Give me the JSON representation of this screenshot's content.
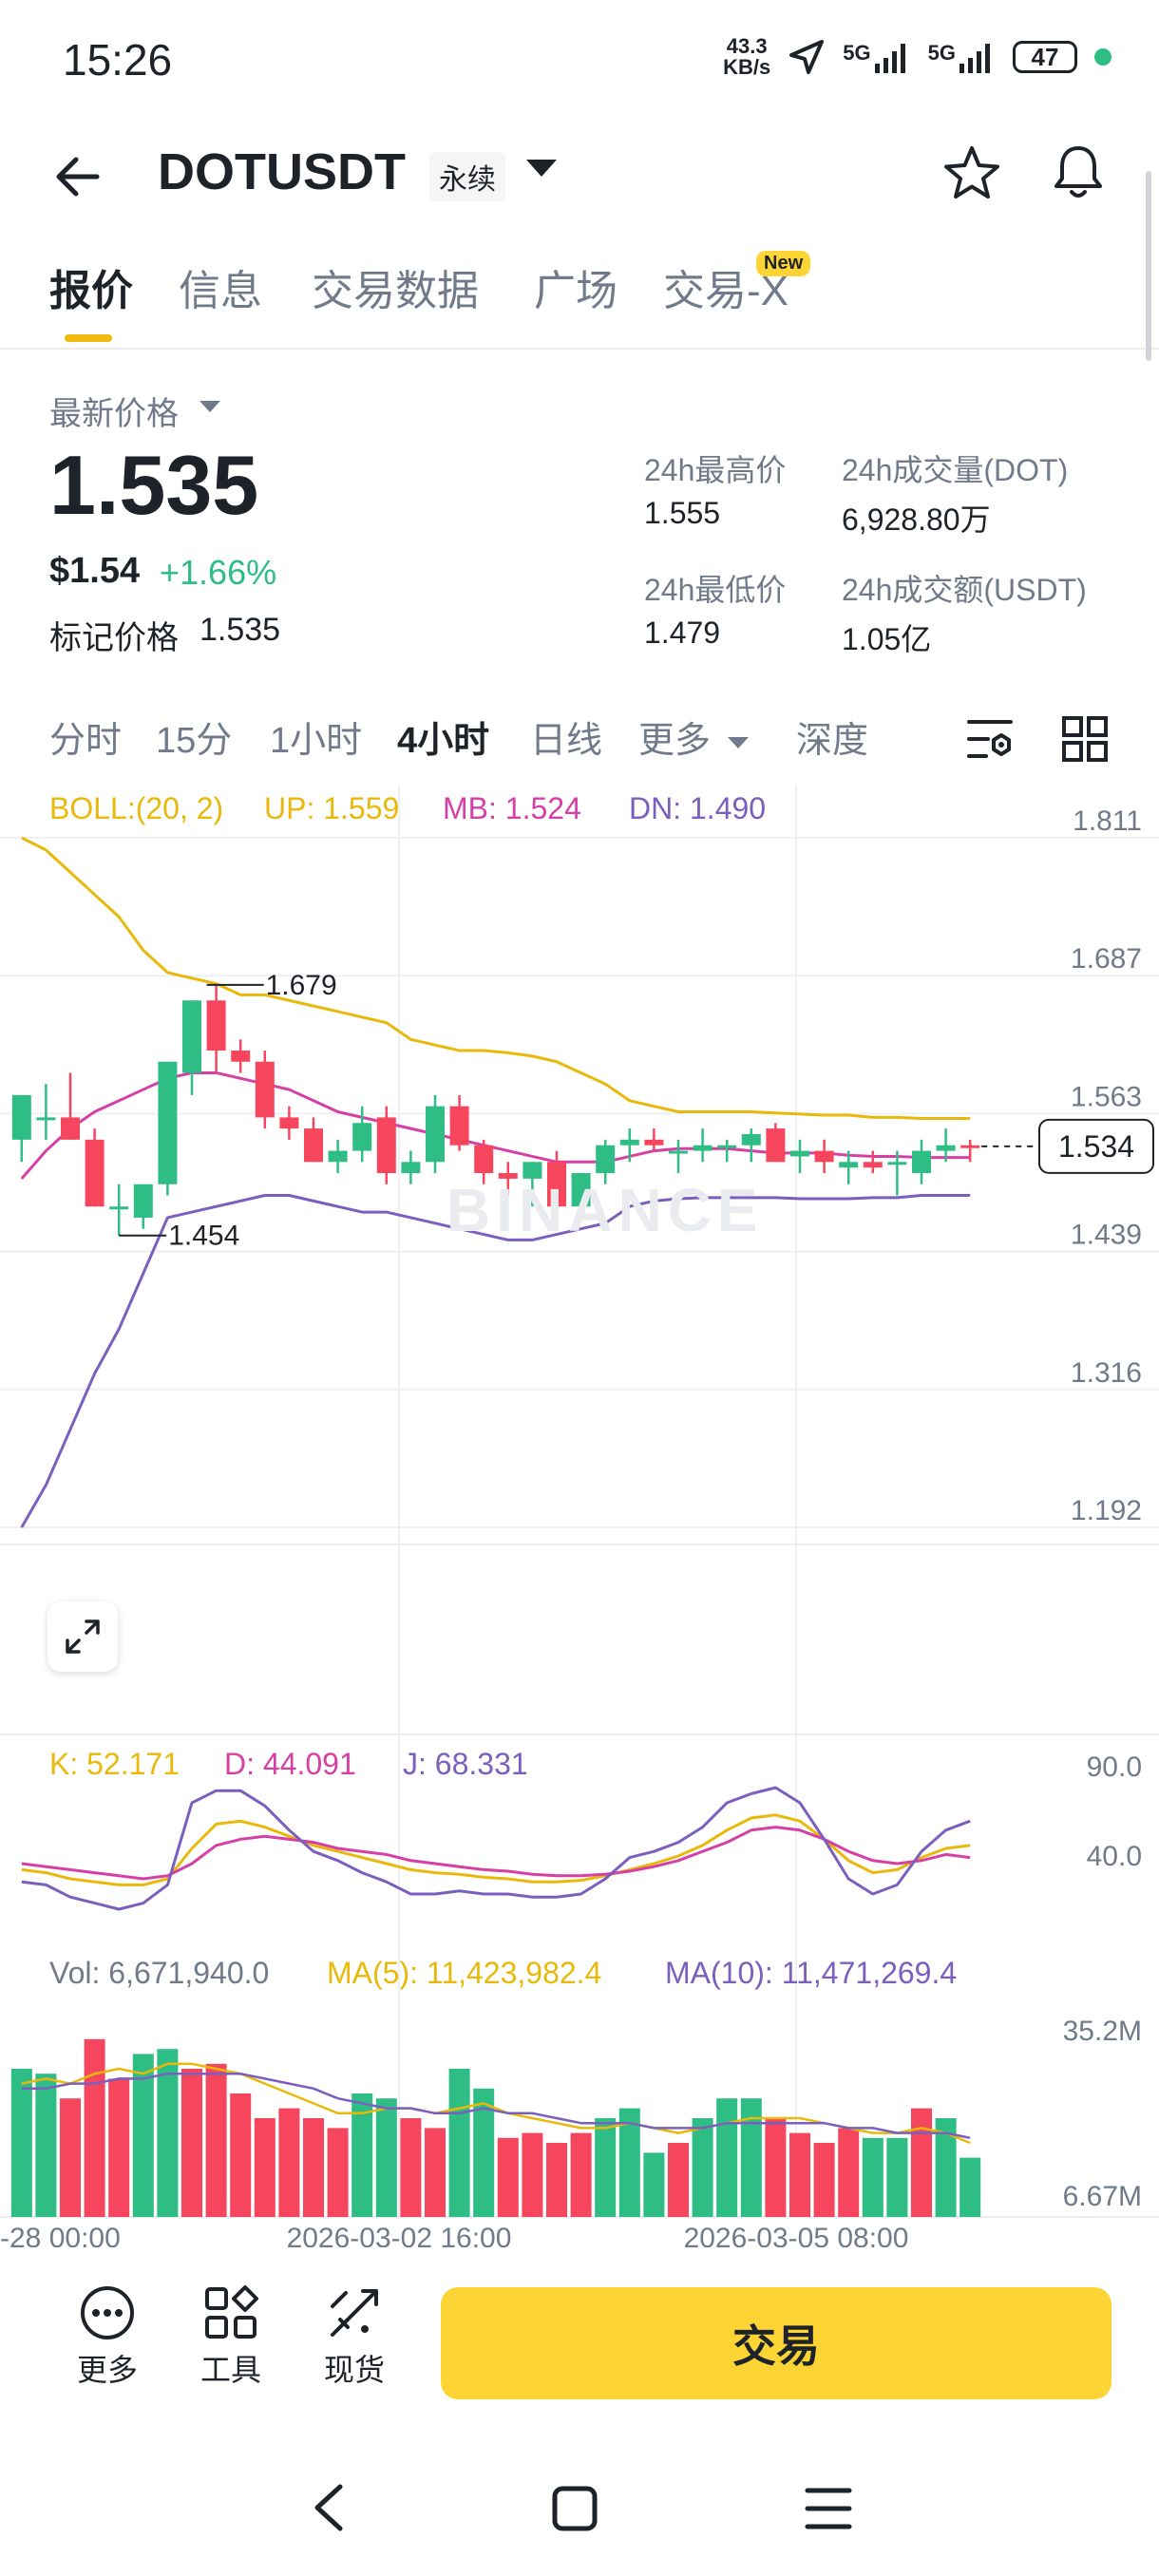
{
  "status_bar": {
    "time": "15:26",
    "net_speed_value": "43.3",
    "net_speed_unit": "KB/s",
    "sig1": "5G",
    "sig2": "5G",
    "battery": "47"
  },
  "header": {
    "symbol": "DOTUSDT",
    "contract_type": "永续"
  },
  "tabs": [
    {
      "label": "报价",
      "active": true
    },
    {
      "label": "信息"
    },
    {
      "label": "交易数据"
    },
    {
      "label": "广场"
    },
    {
      "label": "交易-X"
    }
  ],
  "new_badge": "New",
  "price": {
    "latest_label": "最新价格",
    "last": "1.535",
    "usd": "$1.54",
    "change": "+1.66%",
    "mark_label": "标记价格",
    "mark_value": "1.535"
  },
  "stats": {
    "high_label": "24h最高价",
    "high": "1.555",
    "low_label": "24h最低价",
    "low": "1.479",
    "vol_dot_label": "24h成交量(DOT)",
    "vol_dot": "6,928.80万",
    "vol_usdt_label": "24h成交额(USDT)",
    "vol_usdt": "1.05亿"
  },
  "intervals": [
    "分时",
    "15分",
    "1小时",
    "4小时",
    "日线",
    "更多",
    "深度"
  ],
  "active_interval": "4小时",
  "chart_data": {
    "type": "candlestick",
    "boll": {
      "label": "BOLL:(20, 2)",
      "up": "UP: 1.559",
      "mb": "MB: 1.524",
      "dn": "DN: 1.490"
    },
    "y_ticks": [
      "1.811",
      "1.687",
      "1.563",
      "1.439",
      "1.316",
      "1.192"
    ],
    "current_price": "1.534",
    "high_marker": "1.679",
    "low_marker": "1.454",
    "watermark": "BINANCE",
    "candles": [
      {
        "o": 1.54,
        "h": 1.58,
        "l": 1.52,
        "c": 1.58
      },
      {
        "o": 1.56,
        "h": 1.59,
        "l": 1.54,
        "c": 1.56
      },
      {
        "o": 1.56,
        "h": 1.6,
        "l": 1.54,
        "c": 1.54
      },
      {
        "o": 1.54,
        "h": 1.55,
        "l": 1.48,
        "c": 1.48
      },
      {
        "o": 1.48,
        "h": 1.5,
        "l": 1.454,
        "c": 1.48
      },
      {
        "o": 1.47,
        "h": 1.5,
        "l": 1.46,
        "c": 1.5
      },
      {
        "o": 1.5,
        "h": 1.61,
        "l": 1.49,
        "c": 1.61
      },
      {
        "o": 1.6,
        "h": 1.665,
        "l": 1.58,
        "c": 1.665
      },
      {
        "o": 1.665,
        "h": 1.679,
        "l": 1.6,
        "c": 1.62
      },
      {
        "o": 1.62,
        "h": 1.63,
        "l": 1.6,
        "c": 1.61
      },
      {
        "o": 1.61,
        "h": 1.62,
        "l": 1.55,
        "c": 1.56
      },
      {
        "o": 1.56,
        "h": 1.57,
        "l": 1.54,
        "c": 1.55
      },
      {
        "o": 1.55,
        "h": 1.56,
        "l": 1.52,
        "c": 1.52
      },
      {
        "o": 1.52,
        "h": 1.54,
        "l": 1.51,
        "c": 1.53
      },
      {
        "o": 1.53,
        "h": 1.57,
        "l": 1.52,
        "c": 1.555
      },
      {
        "o": 1.56,
        "h": 1.57,
        "l": 1.5,
        "c": 1.51
      },
      {
        "o": 1.51,
        "h": 1.53,
        "l": 1.5,
        "c": 1.52
      },
      {
        "o": 1.52,
        "h": 1.58,
        "l": 1.51,
        "c": 1.57
      },
      {
        "o": 1.57,
        "h": 1.58,
        "l": 1.53,
        "c": 1.535
      },
      {
        "o": 1.535,
        "h": 1.54,
        "l": 1.5,
        "c": 1.51
      },
      {
        "o": 1.51,
        "h": 1.52,
        "l": 1.49,
        "c": 1.505
      },
      {
        "o": 1.505,
        "h": 1.52,
        "l": 1.48,
        "c": 1.52
      },
      {
        "o": 1.52,
        "h": 1.53,
        "l": 1.47,
        "c": 1.48
      },
      {
        "o": 1.48,
        "h": 1.51,
        "l": 1.47,
        "c": 1.51
      },
      {
        "o": 1.51,
        "h": 1.54,
        "l": 1.5,
        "c": 1.535
      },
      {
        "o": 1.535,
        "h": 1.55,
        "l": 1.52,
        "c": 1.54
      },
      {
        "o": 1.54,
        "h": 1.55,
        "l": 1.53,
        "c": 1.535
      },
      {
        "o": 1.53,
        "h": 1.54,
        "l": 1.51,
        "c": 1.53
      },
      {
        "o": 1.53,
        "h": 1.55,
        "l": 1.52,
        "c": 1.535
      },
      {
        "o": 1.535,
        "h": 1.54,
        "l": 1.52,
        "c": 1.535
      },
      {
        "o": 1.535,
        "h": 1.55,
        "l": 1.52,
        "c": 1.545
      },
      {
        "o": 1.55,
        "h": 1.555,
        "l": 1.52,
        "c": 1.52
      },
      {
        "o": 1.525,
        "h": 1.54,
        "l": 1.51,
        "c": 1.53
      },
      {
        "o": 1.53,
        "h": 1.54,
        "l": 1.51,
        "c": 1.52
      },
      {
        "o": 1.515,
        "h": 1.53,
        "l": 1.5,
        "c": 1.52
      },
      {
        "o": 1.52,
        "h": 1.53,
        "l": 1.51,
        "c": 1.515
      },
      {
        "o": 1.52,
        "h": 1.53,
        "l": 1.49,
        "c": 1.52
      },
      {
        "o": 1.51,
        "h": 1.54,
        "l": 1.5,
        "c": 1.53
      },
      {
        "o": 1.53,
        "h": 1.55,
        "l": 1.52,
        "c": 1.535
      },
      {
        "o": 1.535,
        "h": 1.54,
        "l": 1.52,
        "c": 1.534
      }
    ],
    "boll_up": [
      1.811,
      1.8,
      1.78,
      1.76,
      1.74,
      1.71,
      1.69,
      1.685,
      1.68,
      1.67,
      1.67,
      1.665,
      1.66,
      1.655,
      1.65,
      1.645,
      1.63,
      1.625,
      1.62,
      1.62,
      1.618,
      1.615,
      1.61,
      1.6,
      1.59,
      1.575,
      1.57,
      1.565,
      1.565,
      1.565,
      1.565,
      1.564,
      1.563,
      1.562,
      1.562,
      1.56,
      1.56,
      1.559,
      1.559,
      1.559
    ],
    "boll_mb": [
      1.505,
      1.53,
      1.55,
      1.565,
      1.575,
      1.585,
      1.595,
      1.6,
      1.6,
      1.595,
      1.59,
      1.585,
      1.575,
      1.565,
      1.56,
      1.555,
      1.55,
      1.545,
      1.54,
      1.535,
      1.53,
      1.525,
      1.52,
      1.52,
      1.52,
      1.525,
      1.53,
      1.532,
      1.532,
      1.532,
      1.53,
      1.528,
      1.528,
      1.528,
      1.526,
      1.525,
      1.525,
      1.524,
      1.524,
      1.524
    ],
    "boll_dn": [
      1.192,
      1.23,
      1.28,
      1.33,
      1.37,
      1.42,
      1.47,
      1.475,
      1.48,
      1.485,
      1.49,
      1.49,
      1.485,
      1.48,
      1.475,
      1.475,
      1.47,
      1.465,
      1.46,
      1.455,
      1.45,
      1.45,
      1.455,
      1.46,
      1.465,
      1.48,
      1.485,
      1.487,
      1.488,
      1.488,
      1.488,
      1.488,
      1.487,
      1.487,
      1.487,
      1.488,
      1.488,
      1.49,
      1.49,
      1.49
    ],
    "kdj": {
      "label_k": "K: 52.171",
      "label_d": "D: 44.091",
      "label_j": "J: 68.331",
      "ticks": [
        "90.0",
        "40.0"
      ],
      "k": [
        36,
        34,
        30,
        28,
        26,
        26,
        30,
        50,
        66,
        68,
        64,
        58,
        52,
        48,
        44,
        40,
        36,
        34,
        33,
        31,
        30,
        28,
        28,
        29,
        32,
        36,
        40,
        45,
        52,
        62,
        70,
        72,
        68,
        56,
        42,
        34,
        36,
        44,
        50,
        52
      ],
      "d": [
        40,
        38,
        36,
        34,
        32,
        30,
        32,
        40,
        52,
        56,
        58,
        56,
        54,
        50,
        48,
        46,
        42,
        40,
        38,
        36,
        35,
        33,
        32,
        32,
        33,
        35,
        38,
        42,
        48,
        54,
        62,
        64,
        62,
        56,
        48,
        42,
        40,
        42,
        46,
        44
      ],
      "j": [
        28,
        26,
        18,
        14,
        10,
        14,
        26,
        80,
        88,
        88,
        78,
        62,
        48,
        42,
        34,
        28,
        20,
        20,
        22,
        20,
        20,
        18,
        18,
        20,
        30,
        44,
        48,
        54,
        64,
        80,
        86,
        90,
        80,
        56,
        30,
        20,
        26,
        48,
        62,
        68
      ]
    },
    "volume": {
      "label_vol": "Vol: 6,671,940.0",
      "label_ma5": "MA(5): 11,423,982.4",
      "label_ma10": "MA(10): 11,471,269.4",
      "ticks": [
        "35.2M",
        "6.67M"
      ],
      "bars": [
        30,
        29,
        24,
        36,
        28,
        33,
        34,
        30,
        31,
        25,
        20,
        22,
        20,
        18,
        25,
        24,
        20,
        18,
        30,
        26,
        16,
        17,
        15,
        17,
        20,
        22,
        13,
        15,
        20,
        24,
        24,
        20,
        17,
        15,
        18,
        16,
        16,
        22,
        20,
        12
      ],
      "up": [
        true,
        true,
        false,
        false,
        false,
        true,
        true,
        false,
        false,
        false,
        false,
        false,
        false,
        false,
        true,
        true,
        false,
        false,
        true,
        true,
        false,
        false,
        false,
        false,
        true,
        true,
        true,
        false,
        true,
        true,
        true,
        false,
        false,
        false,
        false,
        true,
        true,
        false,
        true,
        true
      ],
      "ma5": [
        27,
        28,
        27,
        29,
        30,
        29,
        31,
        31,
        30,
        29,
        27,
        25,
        23,
        21,
        21,
        22,
        22,
        21,
        22,
        23,
        21,
        20,
        19,
        18,
        18,
        19,
        18,
        17,
        18,
        19,
        20,
        20,
        20,
        19,
        18,
        17,
        17,
        18,
        17,
        15
      ],
      "ma10": [
        26,
        26,
        27,
        27,
        28,
        28,
        29,
        29,
        29,
        29,
        28,
        27,
        26,
        24,
        23,
        22,
        22,
        21,
        21,
        22,
        21,
        21,
        20,
        19,
        19,
        19,
        18,
        18,
        18,
        19,
        19,
        19,
        19,
        19,
        18,
        18,
        17,
        17,
        17,
        16
      ]
    },
    "x_ticks": [
      "-28 00:00",
      "2026-03-02 16:00",
      "2026-03-05 08:00"
    ]
  },
  "bottom": {
    "more": "更多",
    "tools": "工具",
    "spot": "现货",
    "trade": "交易"
  }
}
